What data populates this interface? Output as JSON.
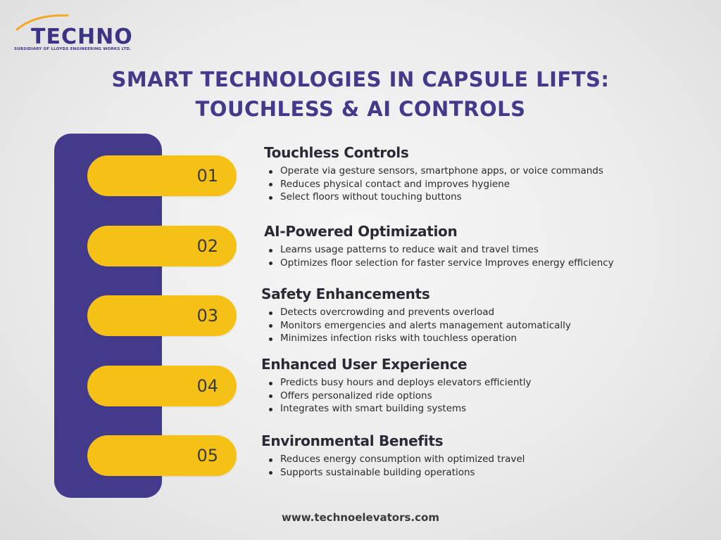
{
  "brand": {
    "name": "TECHNO",
    "tagline": "SUBSIDIARY OF LLOYDS ENGINEERING WORKS LTD.",
    "color": "#433a8c",
    "accent": "#f5a623"
  },
  "title": {
    "line1": "SMART TECHNOLOGIES IN CAPSULE LIFTS:",
    "line2": "TOUCHLESS & AI CONTROLS"
  },
  "sections": [
    {
      "number": "01",
      "heading": "Touchless Controls",
      "bullets": [
        "Operate via gesture sensors, smartphone apps, or voice commands",
        "Reduces physical contact and improves hygiene",
        "Select floors without touching buttons"
      ]
    },
    {
      "number": "02",
      "heading": "AI-Powered Optimization",
      "bullets": [
        "Learns usage patterns to reduce wait and travel times",
        "Optimizes floor selection for faster service Improves energy efficiency"
      ]
    },
    {
      "number": "03",
      "heading": "Safety Enhancements",
      "bullets": [
        "Detects overcrowding and prevents overload",
        "Monitors emergencies and alerts management automatically",
        "Minimizes infection risks with touchless operation"
      ]
    },
    {
      "number": "04",
      "heading": "Enhanced User Experience",
      "bullets": [
        "Predicts busy hours and deploys elevators efficiently",
        "Offers personalized ride options",
        "Integrates with smart building systems"
      ]
    },
    {
      "number": "05",
      "heading": "Environmental Benefits",
      "bullets": [
        "Reduces energy consumption with optimized travel",
        "Supports sustainable building operations"
      ]
    }
  ],
  "footer": {
    "url": "www.technoelevators.com"
  },
  "colors": {
    "rail": "#433a8c",
    "pill": "#f5c117",
    "heading": "#2a2a35"
  }
}
